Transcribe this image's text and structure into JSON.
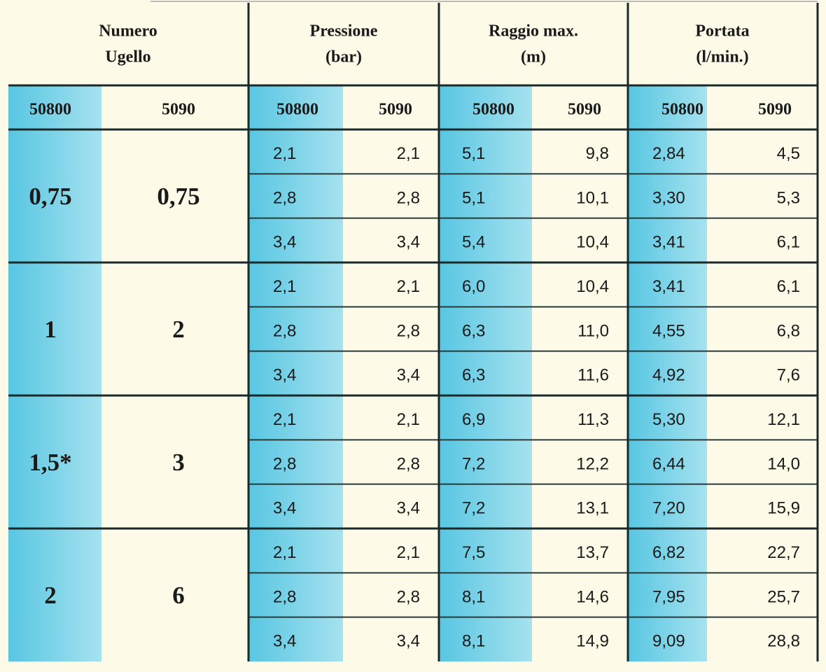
{
  "header": {
    "groups": [
      {
        "lines": [
          "Numero",
          "Ugello"
        ]
      },
      {
        "lines": [
          "Pressione",
          "(bar)"
        ]
      },
      {
        "lines": [
          "Raggio max.",
          "(m)"
        ]
      },
      {
        "lines": [
          "Portata",
          "(l/min.)"
        ]
      }
    ],
    "columns": [
      "50800",
      "5090",
      "50800",
      "5090",
      "50800",
      "5090",
      "50800",
      "5090"
    ]
  },
  "groups": [
    {
      "nozzle": [
        "0,75",
        "0,75"
      ],
      "rows": [
        [
          "2,1",
          "2,1",
          "5,1",
          "9,8",
          "2,84",
          "4,5"
        ],
        [
          "2,8",
          "2,8",
          "5,1",
          "10,1",
          "3,30",
          "5,3"
        ],
        [
          "3,4",
          "3,4",
          "5,4",
          "10,4",
          "3,41",
          "6,1"
        ]
      ]
    },
    {
      "nozzle": [
        "1",
        "2"
      ],
      "rows": [
        [
          "2,1",
          "2,1",
          "6,0",
          "10,4",
          "3,41",
          "6,1"
        ],
        [
          "2,8",
          "2,8",
          "6,3",
          "11,0",
          "4,55",
          "6,8"
        ],
        [
          "3,4",
          "3,4",
          "6,3",
          "11,6",
          "4,92",
          "7,6"
        ]
      ]
    },
    {
      "nozzle": [
        "1,5*",
        "3"
      ],
      "rows": [
        [
          "2,1",
          "2,1",
          "6,9",
          "11,3",
          "5,30",
          "12,1"
        ],
        [
          "2,8",
          "2,8",
          "7,2",
          "12,2",
          "6,44",
          "14,0"
        ],
        [
          "3,4",
          "3,4",
          "7,2",
          "13,1",
          "7,20",
          "15,9"
        ]
      ]
    },
    {
      "nozzle": [
        "2",
        "6"
      ],
      "rows": [
        [
          "2,1",
          "2,1",
          "7,5",
          "13,7",
          "6,82",
          "22,7"
        ],
        [
          "2,8",
          "2,8",
          "8,1",
          "14,6",
          "7,95",
          "25,7"
        ],
        [
          "3,4",
          "3,4",
          "8,1",
          "14,9",
          "9,09",
          "28,8"
        ]
      ]
    }
  ]
}
